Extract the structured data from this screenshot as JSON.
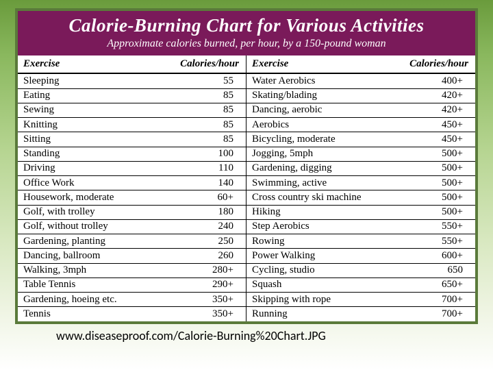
{
  "header": {
    "title": "Calorie-Burning Chart for Various Activities",
    "subtitle": "Approximate calories burned, per hour, by a 150-pound woman"
  },
  "columns": {
    "exercise_label": "Exercise",
    "calories_label": "Calories/hour"
  },
  "left": [
    {
      "exercise": "Sleeping",
      "calories": "55"
    },
    {
      "exercise": "Eating",
      "calories": "85"
    },
    {
      "exercise": "Sewing",
      "calories": "85"
    },
    {
      "exercise": "Knitting",
      "calories": "85"
    },
    {
      "exercise": "Sitting",
      "calories": "85"
    },
    {
      "exercise": "Standing",
      "calories": "100"
    },
    {
      "exercise": "Driving",
      "calories": "110"
    },
    {
      "exercise": "Office Work",
      "calories": "140"
    },
    {
      "exercise": "Housework, moderate",
      "calories": "60+"
    },
    {
      "exercise": "Golf, with trolley",
      "calories": "180"
    },
    {
      "exercise": "Golf, without trolley",
      "calories": "240"
    },
    {
      "exercise": "Gardening, planting",
      "calories": "250"
    },
    {
      "exercise": "Dancing, ballroom",
      "calories": "260"
    },
    {
      "exercise": "Walking, 3mph",
      "calories": "280+"
    },
    {
      "exercise": "Table Tennis",
      "calories": "290+"
    },
    {
      "exercise": "Gardening, hoeing etc.",
      "calories": "350+"
    },
    {
      "exercise": "Tennis",
      "calories": "350+"
    }
  ],
  "right": [
    {
      "exercise": "Water Aerobics",
      "calories": "400+"
    },
    {
      "exercise": "Skating/blading",
      "calories": "420+"
    },
    {
      "exercise": "Dancing, aerobic",
      "calories": "420+"
    },
    {
      "exercise": "Aerobics",
      "calories": "450+"
    },
    {
      "exercise": "Bicycling, moderate",
      "calories": "450+"
    },
    {
      "exercise": "Jogging, 5mph",
      "calories": "500+"
    },
    {
      "exercise": "Gardening, digging",
      "calories": "500+"
    },
    {
      "exercise": "Swimming, active",
      "calories": "500+"
    },
    {
      "exercise": "Cross country ski machine",
      "calories": "500+"
    },
    {
      "exercise": "Hiking",
      "calories": "500+"
    },
    {
      "exercise": "Step Aerobics",
      "calories": "550+"
    },
    {
      "exercise": "Rowing",
      "calories": "550+"
    },
    {
      "exercise": "Power Walking",
      "calories": "600+"
    },
    {
      "exercise": "Cycling, studio",
      "calories": "650"
    },
    {
      "exercise": "Squash",
      "calories": "650+"
    },
    {
      "exercise": "Skipping with rope",
      "calories": "700+"
    },
    {
      "exercise": "Running",
      "calories": "700+"
    }
  ],
  "caption": "www.diseaseproof.com/Calorie-Burning%20Chart.JPG",
  "style": {
    "header_bg": "#7a1a5a",
    "header_fg": "#ffffff",
    "border_color": "#5a7a3a",
    "grid_color": "#000000",
    "body_bg_gradient": [
      "#6a9b3c",
      "#ffffff"
    ],
    "title_fontsize": 27,
    "subtitle_fontsize": 16,
    "row_fontsize": 15,
    "caption_fontsize": 18
  }
}
